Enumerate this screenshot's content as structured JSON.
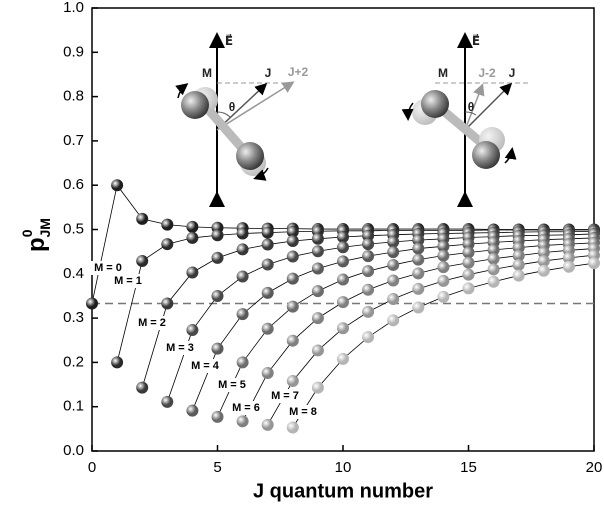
{
  "chart_data": {
    "type": "scatter-line",
    "xlabel": "J quantum number",
    "ylabel": {
      "base": "p",
      "sup": "0",
      "sub": "JM"
    },
    "xlim": [
      0,
      20
    ],
    "ylim": [
      0,
      1
    ],
    "xticks": [
      0,
      5,
      10,
      15,
      20
    ],
    "yticks": [
      {
        "value": 0,
        "label": "0.0"
      },
      0.1,
      0.2,
      0.3,
      0.4,
      0.5,
      0.6,
      0.7,
      0.8,
      0.9,
      {
        "value": 1,
        "label": "1.0"
      }
    ],
    "hline": 0.333,
    "series": [
      {
        "name": "M = 0",
        "color": "#1e1e1e",
        "x": [
          0,
          1,
          2,
          3,
          4,
          5,
          6,
          7,
          8,
          9,
          10,
          11,
          12,
          13,
          14,
          15,
          16,
          17,
          18,
          19,
          20
        ],
        "values": [
          0.333,
          0.6,
          0.524,
          0.511,
          0.506,
          0.504,
          0.503,
          0.502,
          0.502,
          0.501,
          0.501,
          0.501,
          0.501,
          0.501,
          0.501,
          0.501,
          0.5,
          0.5,
          0.5,
          0.5,
          0.5
        ]
      },
      {
        "name": "M = 1",
        "color": "#2a2a2a",
        "x": [
          1,
          2,
          3,
          4,
          5,
          6,
          7,
          8,
          9,
          10,
          11,
          12,
          13,
          14,
          15,
          16,
          17,
          18,
          19,
          20
        ],
        "values": [
          0.2,
          0.429,
          0.467,
          0.481,
          0.487,
          0.491,
          0.493,
          0.495,
          0.496,
          0.497,
          0.497,
          0.498,
          0.498,
          0.498,
          0.498,
          0.499,
          0.499,
          0.499,
          0.499,
          0.499
        ]
      },
      {
        "name": "M = 2",
        "color": "#383838",
        "x": [
          2,
          3,
          4,
          5,
          6,
          7,
          8,
          9,
          10,
          11,
          12,
          13,
          14,
          15,
          16,
          17,
          18,
          19,
          20
        ],
        "values": [
          0.143,
          0.333,
          0.403,
          0.436,
          0.455,
          0.466,
          0.474,
          0.479,
          0.483,
          0.486,
          0.488,
          0.49,
          0.491,
          0.492,
          0.493,
          0.494,
          0.495,
          0.495,
          0.496
        ]
      },
      {
        "name": "M = 3",
        "color": "#484848",
        "x": [
          3,
          4,
          5,
          6,
          7,
          8,
          9,
          10,
          11,
          12,
          13,
          14,
          15,
          16,
          17,
          18,
          19,
          20
        ],
        "values": [
          0.111,
          0.273,
          0.35,
          0.394,
          0.421,
          0.439,
          0.451,
          0.46,
          0.467,
          0.472,
          0.476,
          0.479,
          0.482,
          0.484,
          0.486,
          0.487,
          0.488,
          0.49
        ]
      },
      {
        "name": "M = 4",
        "color": "#5a5a5a",
        "x": [
          4,
          5,
          6,
          7,
          8,
          9,
          10,
          11,
          12,
          13,
          14,
          15,
          16,
          17,
          18,
          19,
          20
        ],
        "values": [
          0.091,
          0.231,
          0.309,
          0.357,
          0.389,
          0.412,
          0.428,
          0.44,
          0.449,
          0.457,
          0.462,
          0.467,
          0.471,
          0.474,
          0.477,
          0.479,
          0.481
        ]
      },
      {
        "name": "M = 5",
        "color": "#6c6c6c",
        "x": [
          5,
          6,
          7,
          8,
          9,
          10,
          11,
          12,
          13,
          14,
          15,
          16,
          17,
          18,
          19,
          20
        ],
        "values": [
          0.077,
          0.2,
          0.276,
          0.326,
          0.361,
          0.387,
          0.406,
          0.42,
          0.432,
          0.441,
          0.448,
          0.454,
          0.459,
          0.464,
          0.467,
          0.47
        ]
      },
      {
        "name": "M = 6",
        "color": "#808080",
        "x": [
          6,
          7,
          8,
          9,
          10,
          11,
          12,
          13,
          14,
          15,
          16,
          17,
          18,
          19,
          20
        ],
        "values": [
          0.067,
          0.176,
          0.249,
          0.3,
          0.336,
          0.364,
          0.385,
          0.401,
          0.415,
          0.425,
          0.434,
          0.441,
          0.448,
          0.453,
          0.457
        ]
      },
      {
        "name": "M = 7",
        "color": "#959595",
        "x": [
          7,
          8,
          9,
          10,
          11,
          12,
          13,
          14,
          15,
          16,
          17,
          18,
          19,
          20
        ],
        "values": [
          0.059,
          0.158,
          0.227,
          0.277,
          0.314,
          0.343,
          0.366,
          0.384,
          0.398,
          0.41,
          0.42,
          0.429,
          0.436,
          0.442
        ]
      },
      {
        "name": "M = 8",
        "color": "#b4b4b4",
        "x": [
          8,
          9,
          10,
          11,
          12,
          13,
          14,
          15,
          16,
          17,
          18,
          19,
          20
        ],
        "values": [
          0.053,
          0.143,
          0.208,
          0.257,
          0.295,
          0.324,
          0.348,
          0.367,
          0.382,
          0.396,
          0.407,
          0.416,
          0.424
        ]
      }
    ],
    "insets": [
      {
        "field": "E⃗",
        "m": "M",
        "j": "J",
        "j2": "J+2",
        "theta": "θ"
      },
      {
        "field": "E⃗",
        "m": "M",
        "j": "J",
        "j2": "J-2",
        "theta": "θ"
      }
    ]
  }
}
